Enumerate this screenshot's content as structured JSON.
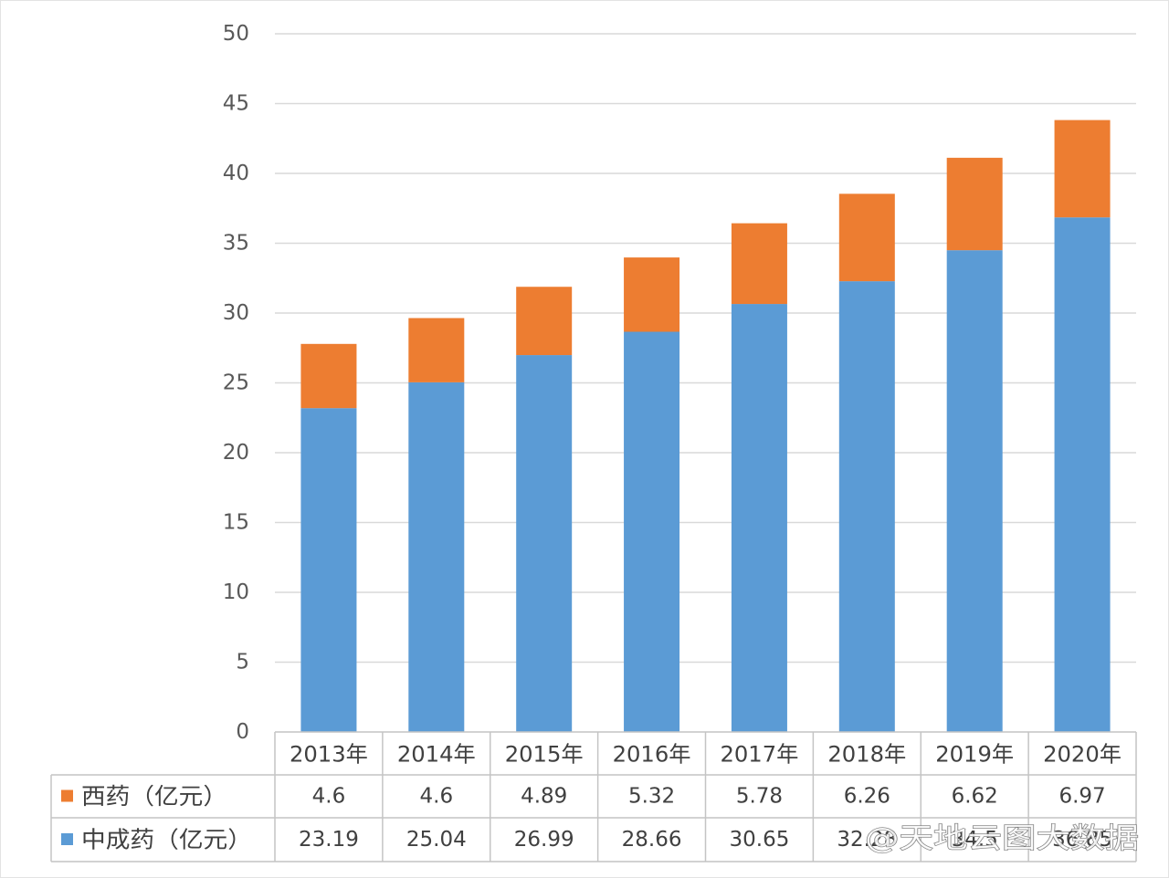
{
  "chart_data": {
    "type": "bar",
    "stacked": true,
    "title": "",
    "xlabel": "",
    "ylabel": "",
    "categories": [
      "2013年",
      "2014年",
      "2015年",
      "2016年",
      "2017年",
      "2018年",
      "2019年",
      "2020年"
    ],
    "series": [
      {
        "name": "中成药（亿元）",
        "color": "#5B9BD5",
        "values": [
          23.19,
          25.04,
          26.99,
          28.66,
          30.65,
          32.28,
          34.5,
          36.85
        ]
      },
      {
        "name": "西药（亿元）",
        "color": "#ED7D31",
        "values": [
          4.6,
          4.6,
          4.89,
          5.32,
          5.78,
          6.26,
          6.62,
          6.97
        ]
      }
    ],
    "ylim": [
      0,
      50
    ],
    "yticks": [
      0,
      5,
      10,
      15,
      20,
      25,
      30,
      35,
      40,
      45,
      50
    ],
    "grid": true,
    "legend": "data-table-below"
  },
  "watermark": "@天地云图大数据"
}
